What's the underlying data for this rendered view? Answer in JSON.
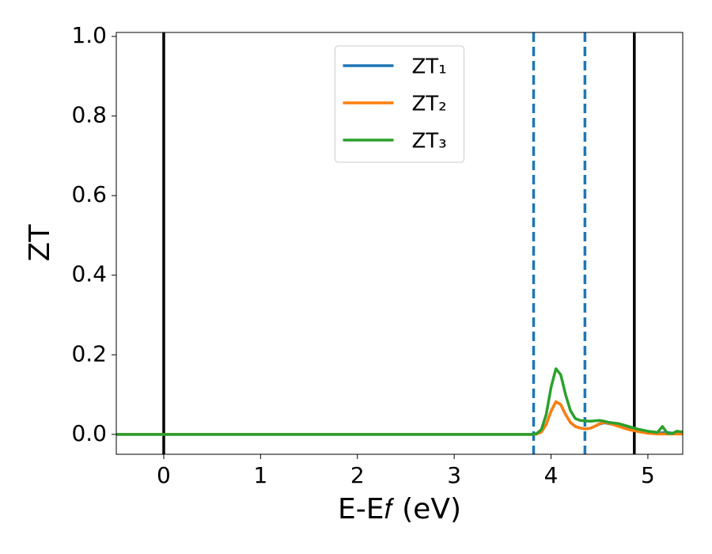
{
  "chart_data": {
    "type": "line",
    "xlabel": "E-E𝑓 (eV)",
    "ylabel": "ZT",
    "x": [
      -0.49,
      0,
      1,
      2,
      3,
      3.7,
      3.8,
      3.85,
      3.9,
      3.95,
      4.0,
      4.05,
      4.1,
      4.15,
      4.2,
      4.25,
      4.3,
      4.35,
      4.4,
      4.45,
      4.5,
      4.55,
      4.6,
      4.7,
      4.8,
      4.9,
      5.0,
      5.1,
      5.15,
      5.2,
      5.25,
      5.3,
      5.36
    ],
    "series": [
      {
        "name": "ZT₁",
        "color": "#1f77b4",
        "values": [
          0,
          0,
          0,
          0,
          0,
          0,
          0,
          0.001,
          0.006,
          0.025,
          0.058,
          0.082,
          0.075,
          0.05,
          0.03,
          0.02,
          0.016,
          0.014,
          0.015,
          0.02,
          0.026,
          0.029,
          0.027,
          0.022,
          0.016,
          0.008,
          0.004,
          0.003,
          0.004,
          0.005,
          0.003,
          0.004,
          0.003
        ]
      },
      {
        "name": "ZT₂",
        "color": "#ff7f0e",
        "values": [
          0,
          0,
          0,
          0,
          0,
          0,
          0,
          0.001,
          0.006,
          0.025,
          0.058,
          0.082,
          0.075,
          0.05,
          0.03,
          0.02,
          0.016,
          0.014,
          0.015,
          0.02,
          0.027,
          0.03,
          0.028,
          0.02,
          0.012,
          0.007,
          0.003,
          0.001,
          0.001,
          0.001,
          0.001,
          0.001,
          0.001
        ]
      },
      {
        "name": "ZT₃",
        "color": "#2ca02c",
        "values": [
          0,
          0,
          0,
          0,
          0,
          0,
          0,
          0.002,
          0.012,
          0.05,
          0.118,
          0.165,
          0.15,
          0.1,
          0.06,
          0.04,
          0.035,
          0.034,
          0.033,
          0.034,
          0.035,
          0.033,
          0.03,
          0.027,
          0.02,
          0.013,
          0.008,
          0.005,
          0.02,
          0.003,
          0.002,
          0.008,
          0.006
        ]
      }
    ],
    "vlines": [
      {
        "x": 0,
        "color": "#000000",
        "style": "solid"
      },
      {
        "x": 4.86,
        "color": "#000000",
        "style": "solid"
      },
      {
        "x": 3.82,
        "color": "#1f77b4",
        "style": "dashed"
      },
      {
        "x": 4.35,
        "color": "#1f77b4",
        "style": "dashed"
      }
    ],
    "xlim": [
      -0.49,
      5.36
    ],
    "ylim": [
      -0.05,
      1.01
    ],
    "xticks": [
      0,
      1,
      2,
      3,
      4,
      5
    ],
    "yticks": [
      {
        "value": 0,
        "label": "0.0"
      },
      {
        "value": 0.2,
        "label": "0.2"
      },
      {
        "value": 0.4,
        "label": "0.4"
      },
      {
        "value": 0.6,
        "label": "0.6"
      },
      {
        "value": 0.8,
        "label": "0.8"
      },
      {
        "value": 1.0,
        "label": "1.0"
      }
    ],
    "grid": false,
    "legend": "upper center"
  }
}
